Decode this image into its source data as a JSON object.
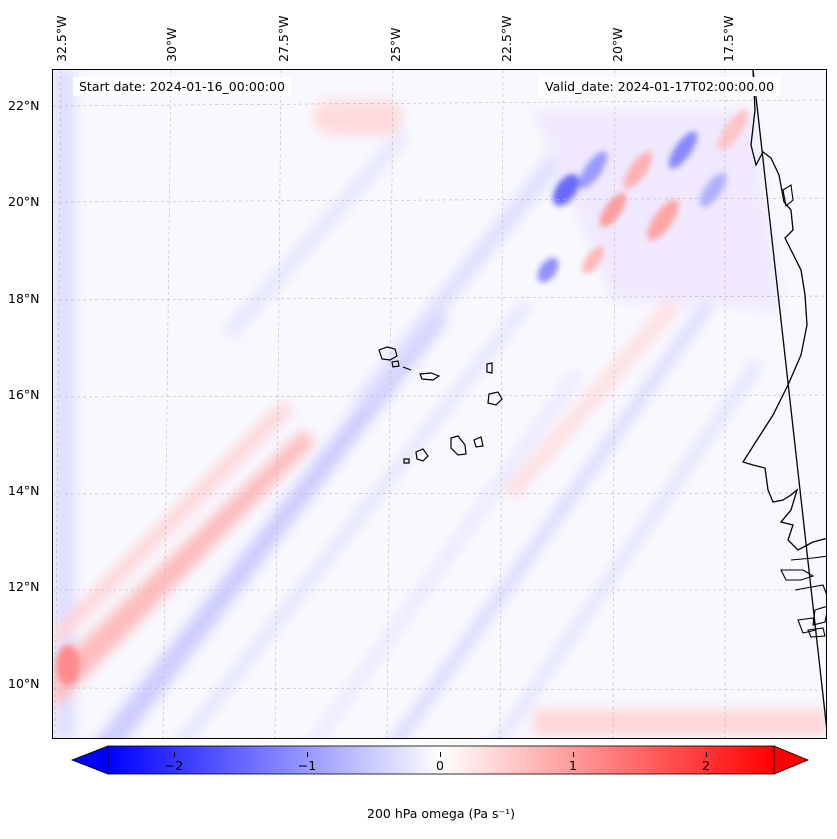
{
  "map": {
    "title_start": "Start date: 2024-01-16_00:00:00",
    "title_valid": "Valid_date: 2024-01-17T02:00:00.00",
    "longitude_labels": [
      "32.5°W",
      "30°W",
      "27.5°W",
      "25°W",
      "22.5°W",
      "20°W",
      "17.5°W"
    ],
    "latitude_labels": [
      "22°N",
      "20°N",
      "18°N",
      "16°N",
      "14°N",
      "12°N",
      "10°N"
    ],
    "extent": {
      "lon_min": -32.9,
      "lon_max": -15.2,
      "lat_min": 8.9,
      "lat_max": 22.8
    },
    "variable": "200 hPa omega",
    "units": "Pa s⁻¹"
  },
  "colorbar": {
    "label": "200 hPa omega (Pa s⁻¹)",
    "ticks": [
      "−2",
      "−1",
      "0",
      "1",
      "2"
    ],
    "tick_values": [
      -2,
      -1,
      0,
      1,
      2
    ],
    "range": [
      -2.5,
      2.5
    ],
    "cmap": "bwr",
    "extend": "both"
  },
  "colors": {
    "negative": "#0000ff",
    "zero": "#ffffff",
    "positive": "#ff0000",
    "coastline": "#000000",
    "gridline": "#b0b0b0"
  }
}
